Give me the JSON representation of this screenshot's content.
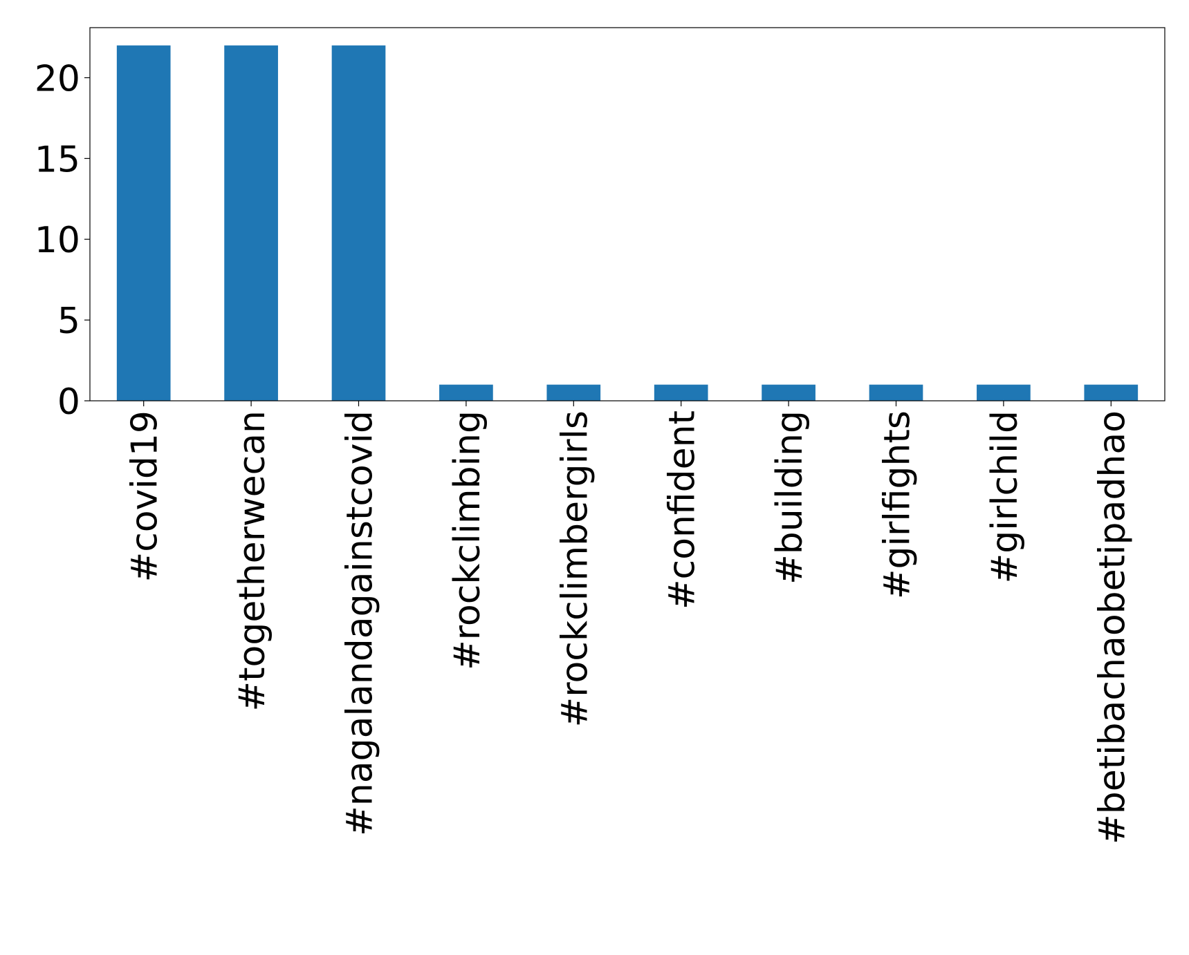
{
  "chart_data": {
    "type": "bar",
    "categories": [
      "#covid19",
      "#togetherwecan",
      "#nagalandagainstcovid",
      "#rockclimbing",
      "#rockclimbergirls",
      "#confident",
      "#building",
      "#girlfights",
      "#girlchild",
      "#betibachaobetipadhao"
    ],
    "values": [
      22,
      22,
      22,
      1,
      1,
      1,
      1,
      1,
      1,
      1
    ],
    "color": "#1f77b4",
    "ylim": [
      0,
      23.1
    ],
    "yticks": [
      0,
      5,
      10,
      15,
      20
    ],
    "grid": false
  }
}
